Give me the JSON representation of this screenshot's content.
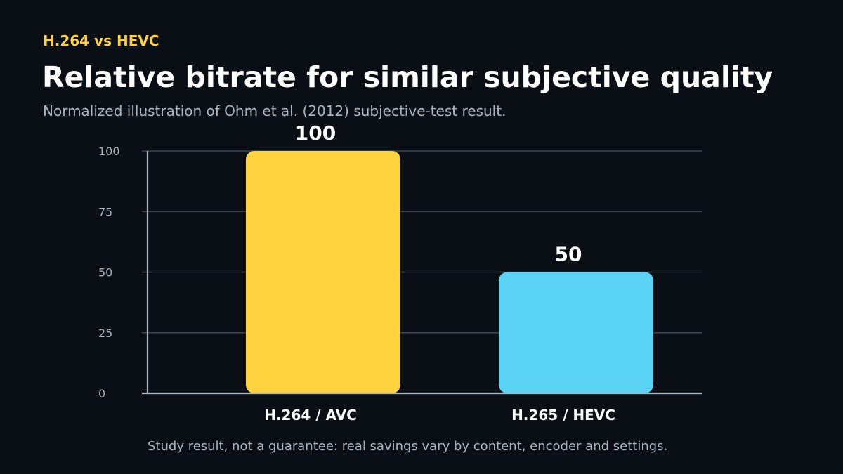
{
  "header": {
    "eyebrow": "H.264 vs HEVC",
    "title": "Relative bitrate for similar subjective quality",
    "subtitle": "Normalized illustration of Ohm et al. (2012) subjective-test result."
  },
  "footnote": "Study result, not a guarantee: real savings vary by content, encoder and settings.",
  "colors": {
    "background": "#0a0f15",
    "accent": "#ffd23f",
    "avc_bar": "#ffd23f",
    "hevc_bar": "#5ad2f4",
    "grid": "#3a4752",
    "axis": "#a9b5c2"
  },
  "chart_data": {
    "type": "bar",
    "categories": [
      "H.264 / AVC",
      "H.265 / HEVC"
    ],
    "values": [
      100,
      50
    ],
    "value_labels": [
      "100",
      "50"
    ],
    "bar_colors": [
      "#ffd23f",
      "#5ad2f4"
    ],
    "ylim": [
      0,
      100
    ],
    "yticks": [
      0,
      25,
      50,
      75,
      100
    ],
    "ytick_labels": [
      "0",
      "25",
      "50",
      "75",
      "100"
    ],
    "grid": true,
    "legend": "none"
  }
}
